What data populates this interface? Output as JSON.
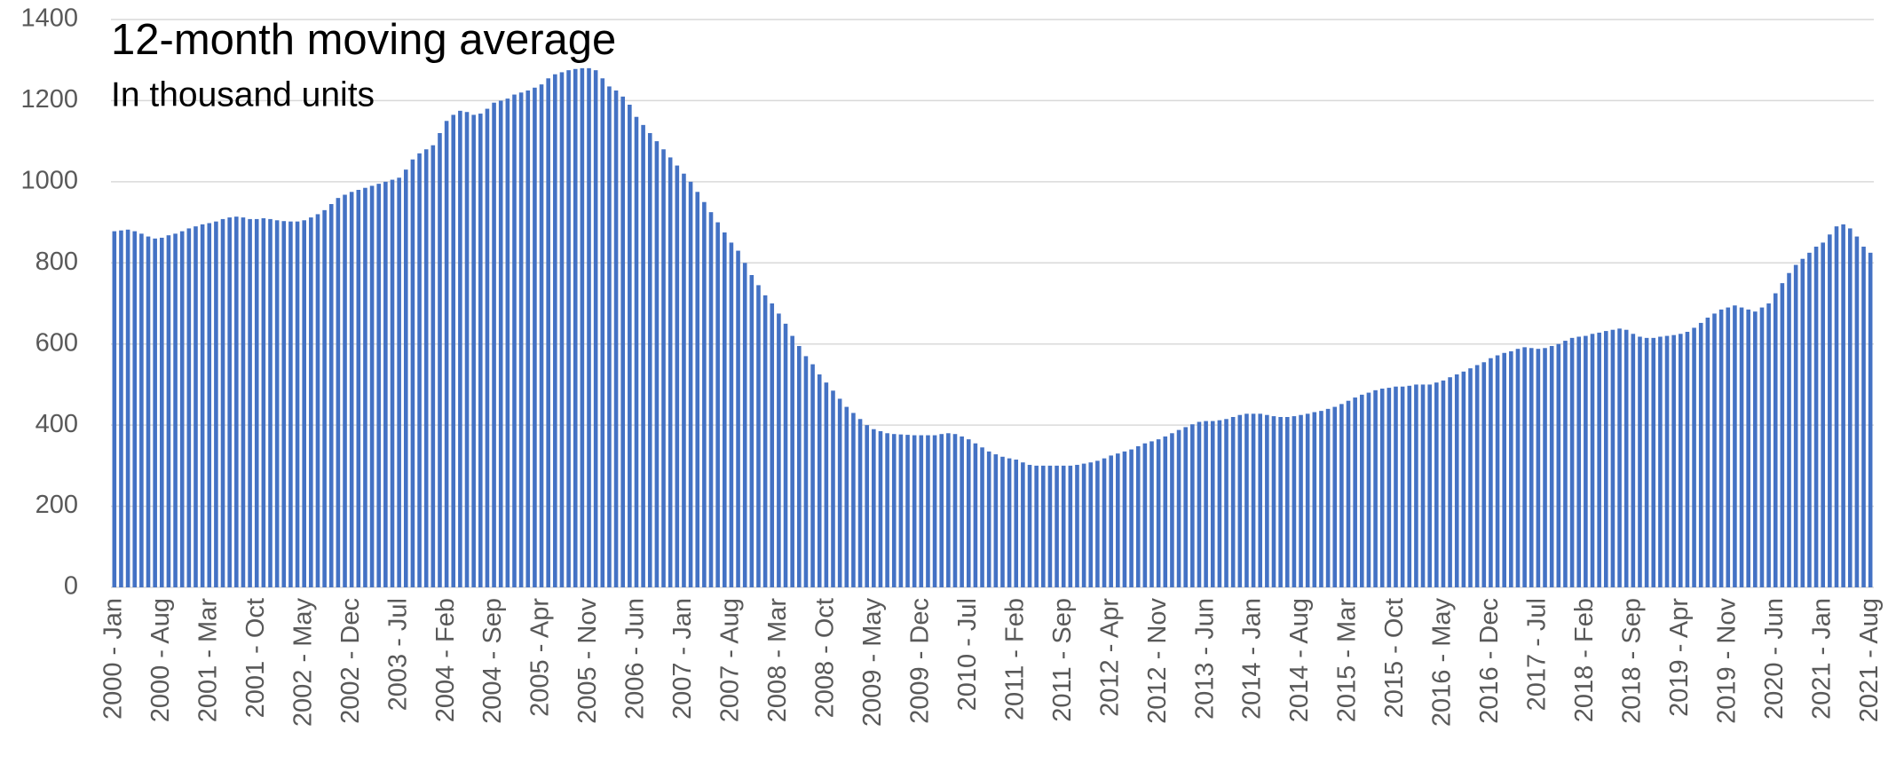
{
  "chart_data": {
    "type": "bar",
    "title": "12-month moving average",
    "subtitle": "In thousand units",
    "categories": [
      "2000 - Jan",
      null,
      null,
      null,
      null,
      null,
      null,
      "2000 - Aug",
      null,
      null,
      null,
      null,
      null,
      null,
      "2001 - Mar",
      null,
      null,
      null,
      null,
      null,
      null,
      "2001 - Oct",
      null,
      null,
      null,
      null,
      null,
      null,
      "2002 - May",
      null,
      null,
      null,
      null,
      null,
      null,
      "2002 - Dec",
      null,
      null,
      null,
      null,
      null,
      null,
      "2003 - Jul",
      null,
      null,
      null,
      null,
      null,
      null,
      "2004 - Feb",
      null,
      null,
      null,
      null,
      null,
      null,
      "2004 - Sep",
      null,
      null,
      null,
      null,
      null,
      null,
      "2005 - Apr",
      null,
      null,
      null,
      null,
      null,
      null,
      "2005 - Nov",
      null,
      null,
      null,
      null,
      null,
      null,
      "2006 - Jun",
      null,
      null,
      null,
      null,
      null,
      null,
      "2007 - Jan",
      null,
      null,
      null,
      null,
      null,
      null,
      "2007 - Aug",
      null,
      null,
      null,
      null,
      null,
      null,
      "2008 - Mar",
      null,
      null,
      null,
      null,
      null,
      null,
      "2008 - Oct",
      null,
      null,
      null,
      null,
      null,
      null,
      "2009 - May",
      null,
      null,
      null,
      null,
      null,
      null,
      "2009 - Dec",
      null,
      null,
      null,
      null,
      null,
      null,
      "2010 - Jul",
      null,
      null,
      null,
      null,
      null,
      null,
      "2011 - Feb",
      null,
      null,
      null,
      null,
      null,
      null,
      "2011 - Sep",
      null,
      null,
      null,
      null,
      null,
      null,
      "2012 - Apr",
      null,
      null,
      null,
      null,
      null,
      null,
      "2012 - Nov",
      null,
      null,
      null,
      null,
      null,
      null,
      "2013 - Jun",
      null,
      null,
      null,
      null,
      null,
      null,
      "2014 - Jan",
      null,
      null,
      null,
      null,
      null,
      null,
      "2014 - Aug",
      null,
      null,
      null,
      null,
      null,
      null,
      "2015 - Mar",
      null,
      null,
      null,
      null,
      null,
      null,
      "2015 - Oct",
      null,
      null,
      null,
      null,
      null,
      null,
      "2016 - May",
      null,
      null,
      null,
      null,
      null,
      null,
      "2016 - Dec",
      null,
      null,
      null,
      null,
      null,
      null,
      "2017 - Jul",
      null,
      null,
      null,
      null,
      null,
      null,
      "2018 - Feb",
      null,
      null,
      null,
      null,
      null,
      null,
      "2018 - Sep",
      null,
      null,
      null,
      null,
      null,
      null,
      "2019 - Apr",
      null,
      null,
      null,
      null,
      null,
      null,
      "2019 - Nov",
      null,
      null,
      null,
      null,
      null,
      null,
      "2020 - Jun",
      null,
      null,
      null,
      null,
      null,
      null,
      "2021 - Jan",
      null,
      null,
      null,
      null,
      null,
      null,
      "2021 - Aug"
    ],
    "values": [
      878,
      880,
      882,
      878,
      872,
      865,
      860,
      862,
      868,
      872,
      878,
      885,
      890,
      895,
      898,
      902,
      908,
      912,
      914,
      912,
      908,
      908,
      910,
      908,
      905,
      903,
      902,
      902,
      905,
      912,
      920,
      930,
      945,
      960,
      968,
      975,
      980,
      985,
      990,
      995,
      1000,
      1005,
      1010,
      1030,
      1055,
      1070,
      1080,
      1090,
      1120,
      1150,
      1165,
      1175,
      1172,
      1165,
      1168,
      1180,
      1195,
      1200,
      1205,
      1215,
      1220,
      1225,
      1232,
      1240,
      1255,
      1265,
      1270,
      1275,
      1278,
      1280,
      1280,
      1275,
      1255,
      1235,
      1225,
      1210,
      1190,
      1160,
      1140,
      1120,
      1100,
      1080,
      1060,
      1040,
      1020,
      1000,
      975,
      950,
      925,
      900,
      875,
      850,
      830,
      800,
      770,
      745,
      720,
      700,
      675,
      650,
      620,
      595,
      570,
      550,
      525,
      505,
      485,
      465,
      445,
      430,
      415,
      400,
      390,
      385,
      380,
      378,
      377,
      376,
      375,
      375,
      375,
      375,
      378,
      380,
      378,
      372,
      365,
      355,
      345,
      335,
      328,
      322,
      318,
      315,
      308,
      302,
      300,
      300,
      300,
      300,
      300,
      300,
      302,
      305,
      308,
      312,
      318,
      325,
      330,
      335,
      340,
      348,
      355,
      360,
      365,
      372,
      380,
      388,
      395,
      402,
      408,
      410,
      410,
      412,
      415,
      420,
      425,
      428,
      428,
      428,
      425,
      422,
      420,
      420,
      422,
      425,
      428,
      432,
      435,
      440,
      445,
      452,
      460,
      468,
      475,
      480,
      486,
      490,
      492,
      495,
      495,
      497,
      500,
      500,
      500,
      505,
      510,
      518,
      525,
      532,
      540,
      548,
      555,
      565,
      572,
      578,
      582,
      588,
      592,
      590,
      588,
      590,
      595,
      600,
      608,
      615,
      618,
      620,
      625,
      628,
      632,
      635,
      638,
      635,
      625,
      618,
      615,
      615,
      618,
      620,
      622,
      625,
      630,
      640,
      652,
      665,
      675,
      685,
      690,
      695,
      690,
      685,
      680,
      690,
      700,
      725,
      750,
      775,
      795,
      810,
      825,
      840,
      850,
      870,
      890,
      895,
      885,
      865,
      840,
      825
    ],
    "color": "#4472c4",
    "ylim": [
      0,
      1400
    ],
    "yticks": [
      0,
      200,
      400,
      600,
      800,
      1000,
      1200,
      1400
    ],
    "grid": true
  }
}
